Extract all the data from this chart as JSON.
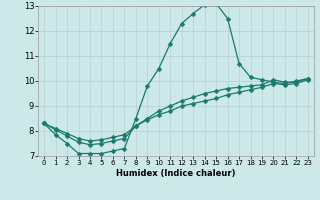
{
  "xlabel": "Humidex (Indice chaleur)",
  "bg_color": "#cce8e8",
  "line_color": "#1a7a6e",
  "grid_color": "#b8d4d4",
  "xlim": [
    -0.5,
    23.5
  ],
  "ylim": [
    7,
    13
  ],
  "yticks": [
    7,
    8,
    9,
    10,
    11,
    12,
    13
  ],
  "xticks": [
    0,
    1,
    2,
    3,
    4,
    5,
    6,
    7,
    8,
    9,
    10,
    11,
    12,
    13,
    14,
    15,
    16,
    17,
    18,
    19,
    20,
    21,
    22,
    23
  ],
  "curve1_x": [
    0,
    1,
    2,
    3,
    4,
    5,
    6,
    7,
    8,
    9,
    10,
    11,
    12,
    13,
    14,
    15,
    16,
    17,
    18,
    19,
    20,
    21,
    22,
    23
  ],
  "curve1_y": [
    8.3,
    7.85,
    7.5,
    7.1,
    7.1,
    7.1,
    7.2,
    7.3,
    8.5,
    9.8,
    10.5,
    11.5,
    12.3,
    12.7,
    13.05,
    13.1,
    12.5,
    10.7,
    10.15,
    10.05,
    9.95,
    9.9,
    10.0,
    10.1
  ],
  "curve2_x": [
    0,
    1,
    2,
    3,
    4,
    5,
    6,
    7,
    8,
    9,
    10,
    11,
    12,
    13,
    14,
    15,
    16,
    17,
    18,
    19,
    20,
    21,
    22,
    23
  ],
  "curve2_y": [
    8.3,
    8.05,
    7.8,
    7.55,
    7.45,
    7.5,
    7.6,
    7.7,
    8.2,
    8.5,
    8.8,
    9.0,
    9.2,
    9.35,
    9.5,
    9.6,
    9.7,
    9.75,
    9.8,
    9.85,
    10.05,
    9.95,
    9.95,
    10.1
  ],
  "curve3_x": [
    0,
    1,
    2,
    3,
    4,
    5,
    6,
    7,
    8,
    9,
    10,
    11,
    12,
    13,
    14,
    15,
    16,
    17,
    18,
    19,
    20,
    21,
    22,
    23
  ],
  "curve3_y": [
    8.3,
    8.1,
    7.9,
    7.7,
    7.6,
    7.65,
    7.75,
    7.85,
    8.2,
    8.45,
    8.65,
    8.8,
    9.0,
    9.1,
    9.2,
    9.3,
    9.45,
    9.55,
    9.65,
    9.75,
    9.9,
    9.85,
    9.9,
    10.05
  ],
  "marker_size": 2.5,
  "line_width": 0.9
}
